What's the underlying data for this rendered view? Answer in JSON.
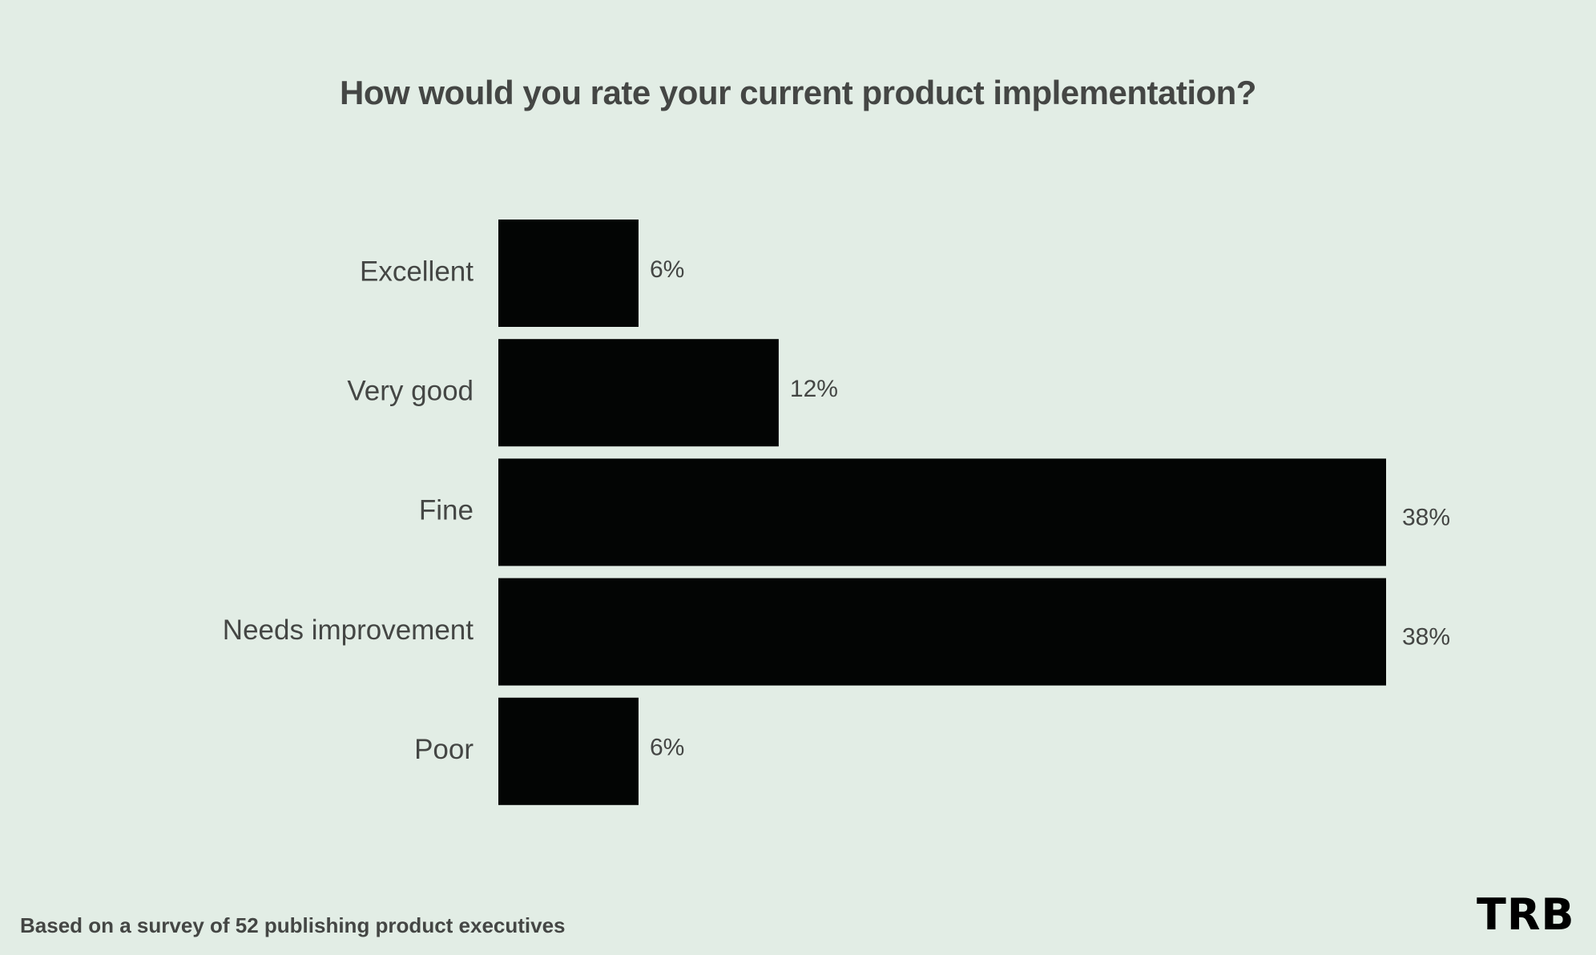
{
  "chart_data": {
    "type": "bar",
    "orientation": "horizontal",
    "title": "How would you rate your current product implementation?",
    "categories": [
      "Excellent",
      "Very good",
      "Fine",
      "Needs improvement",
      "Poor"
    ],
    "values": [
      6,
      12,
      38,
      38,
      6
    ],
    "labels": [
      "6%",
      "12%",
      "38%",
      "38%",
      "6%"
    ],
    "xlabel": "",
    "ylabel": "",
    "xlim": [
      0,
      38
    ],
    "grid": false,
    "bar_color": "#030504"
  },
  "footer": "Based on a survey of 52 publishing product executives",
  "logo": "TRB"
}
